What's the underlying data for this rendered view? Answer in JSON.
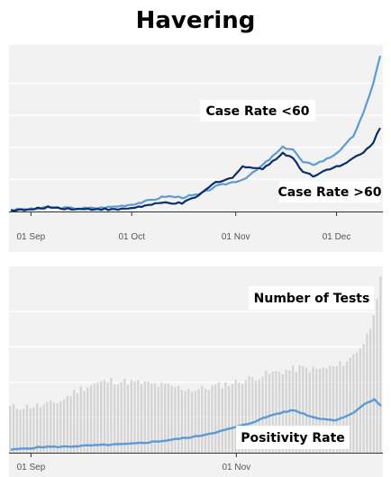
{
  "title": "Havering",
  "colors": {
    "light_blue": "#5b9bd5",
    "dark_blue": "#0b2e6b",
    "bar_gray": "#d4d4d4",
    "grid": "#ffffff",
    "panel_bg": "#f2f2f2"
  },
  "chart_data": [
    {
      "type": "line",
      "title": "",
      "xlabel": "",
      "ylabel": "",
      "x_ticks": [
        "01 Sep",
        "01 Oct",
        "01 Nov",
        "01 Dec"
      ],
      "x_range": [
        "2020-08-26",
        "2020-12-14"
      ],
      "grid": true,
      "annotations": [
        "Case Rate <60",
        "Case Rate >60"
      ],
      "series": [
        {
          "name": "Case Rate <60",
          "color": "light_blue",
          "x": [
            "2020-08-26",
            "2020-09-01",
            "2020-09-06",
            "2020-09-11",
            "2020-09-16",
            "2020-09-21",
            "2020-09-26",
            "2020-10-01",
            "2020-10-06",
            "2020-10-11",
            "2020-10-16",
            "2020-10-21",
            "2020-10-26",
            "2020-10-31",
            "2020-11-03",
            "2020-11-06",
            "2020-11-09",
            "2020-11-12",
            "2020-11-15",
            "2020-11-18",
            "2020-11-21",
            "2020-11-24",
            "2020-11-27",
            "2020-11-30",
            "2020-12-03",
            "2020-12-06",
            "2020-12-09",
            "2020-12-12",
            "2020-12-14"
          ],
          "values": [
            2,
            2.5,
            4.5,
            4,
            3.5,
            4,
            5.5,
            8,
            12,
            17,
            16,
            19,
            28,
            33,
            36,
            43,
            52,
            62,
            72,
            70,
            55,
            53,
            57,
            63,
            72,
            85,
            110,
            145,
            175
          ]
        },
        {
          "name": "Case Rate >60",
          "color": "dark_blue",
          "x": [
            "2020-08-26",
            "2020-09-01",
            "2020-09-06",
            "2020-09-11",
            "2020-09-16",
            "2020-09-21",
            "2020-09-26",
            "2020-10-01",
            "2020-10-06",
            "2020-10-11",
            "2020-10-16",
            "2020-10-21",
            "2020-10-26",
            "2020-10-31",
            "2020-11-03",
            "2020-11-06",
            "2020-11-09",
            "2020-11-12",
            "2020-11-15",
            "2020-11-18",
            "2020-11-21",
            "2020-11-24",
            "2020-11-27",
            "2020-11-30",
            "2020-12-03",
            "2020-12-06",
            "2020-12-09",
            "2020-12-12",
            "2020-12-14"
          ],
          "values": [
            1.5,
            2,
            5,
            3.5,
            2.5,
            3,
            2,
            4,
            7,
            10,
            9,
            18,
            33,
            38,
            50,
            50,
            48,
            56,
            66,
            60,
            45,
            40,
            45,
            50,
            52,
            60,
            66,
            78,
            95
          ]
        }
      ]
    },
    {
      "type": "bar",
      "title": "",
      "xlabel": "",
      "ylabel": "",
      "x_ticks": [
        "01 Sep",
        "01 Nov"
      ],
      "x_range": [
        "2020-08-26",
        "2020-12-14"
      ],
      "grid": true,
      "annotations": [
        "Number of Tests",
        "Positivity Rate"
      ],
      "series": [
        {
          "name": "Number of Tests",
          "type": "bar",
          "color": "bar_gray",
          "x": [
            "2020-08-26",
            "2020-09-05",
            "2020-09-10",
            "2020-09-15",
            "2020-09-20",
            "2020-09-25",
            "2020-10-01",
            "2020-10-10",
            "2020-10-20",
            "2020-10-25",
            "2020-11-01",
            "2020-11-10",
            "2020-11-20",
            "2020-11-25",
            "2020-12-01",
            "2020-12-05",
            "2020-12-09",
            "2020-12-11",
            "2020-12-13",
            "2020-12-14"
          ],
          "values": [
            58,
            60,
            66,
            80,
            88,
            92,
            90,
            86,
            80,
            84,
            90,
            100,
            108,
            106,
            110,
            120,
            140,
            160,
            200,
            220
          ]
        },
        {
          "name": "Positivity Rate",
          "type": "line",
          "color": "light_blue",
          "x": [
            "2020-08-26",
            "2020-09-05",
            "2020-09-10",
            "2020-09-20",
            "2020-10-01",
            "2020-10-10",
            "2020-10-20",
            "2020-10-28",
            "2020-11-05",
            "2020-11-12",
            "2020-11-18",
            "2020-11-24",
            "2020-11-30",
            "2020-12-05",
            "2020-12-09",
            "2020-12-12",
            "2020-12-14"
          ],
          "values": [
            2,
            4,
            4,
            5,
            6,
            8,
            11,
            15,
            20,
            26,
            29,
            24,
            22,
            26,
            33,
            36,
            32
          ]
        }
      ]
    }
  ]
}
